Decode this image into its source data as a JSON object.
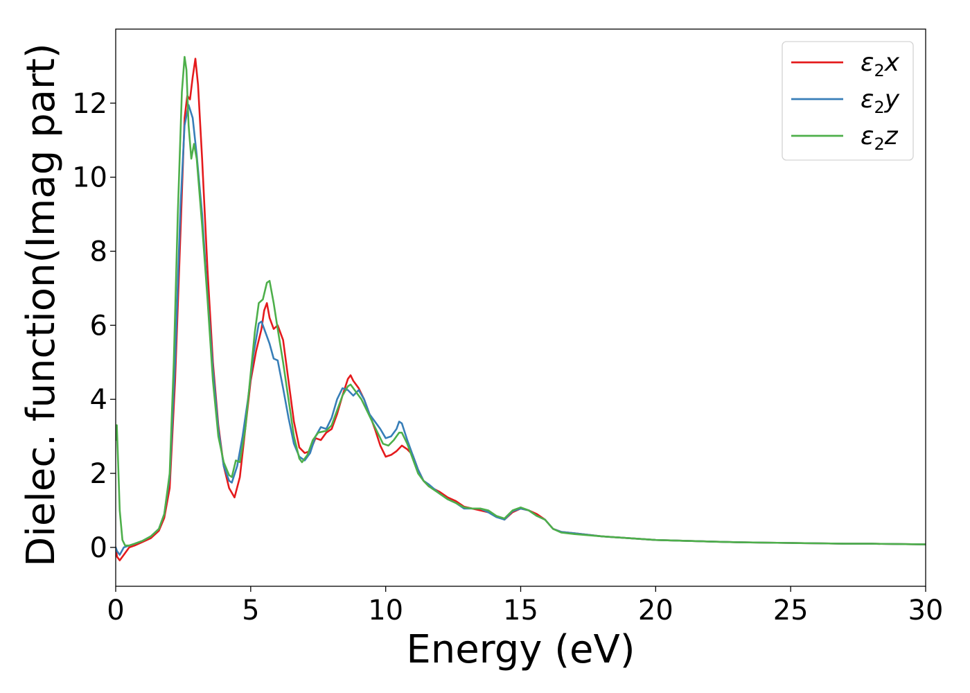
{
  "chart_data": {
    "type": "line",
    "xlabel": "Energy (eV)",
    "ylabel": "Dielec. function(Imag part)",
    "xlim": [
      0,
      30
    ],
    "ylim": [
      -1.05,
      14
    ],
    "xticks": [
      0,
      5,
      10,
      15,
      20,
      25,
      30
    ],
    "yticks": [
      0,
      2,
      4,
      6,
      8,
      10,
      12
    ],
    "grid": false,
    "legend_position": "top-right",
    "series": [
      {
        "name": "ε2x",
        "legend_base": "ε",
        "legend_sub": "2",
        "legend_tail": "x",
        "color": "#e41a1c",
        "points": [
          [
            0,
            0
          ],
          [
            0.05,
            -0.25
          ],
          [
            0.15,
            -0.35
          ],
          [
            0.3,
            -0.2
          ],
          [
            0.5,
            0
          ],
          [
            0.7,
            0.05
          ],
          [
            1,
            0.15
          ],
          [
            1.3,
            0.25
          ],
          [
            1.6,
            0.45
          ],
          [
            1.8,
            0.8
          ],
          [
            2,
            1.6
          ],
          [
            2.2,
            4.5
          ],
          [
            2.4,
            8.5
          ],
          [
            2.55,
            11.6
          ],
          [
            2.65,
            12.2
          ],
          [
            2.75,
            12.1
          ],
          [
            2.85,
            12.7
          ],
          [
            2.95,
            13.2
          ],
          [
            3.05,
            12.5
          ],
          [
            3.2,
            10.5
          ],
          [
            3.4,
            7.5
          ],
          [
            3.6,
            5
          ],
          [
            3.8,
            3.3
          ],
          [
            4,
            2.2
          ],
          [
            4.2,
            1.6
          ],
          [
            4.4,
            1.35
          ],
          [
            4.6,
            1.9
          ],
          [
            4.8,
            3.2
          ],
          [
            5,
            4.5
          ],
          [
            5.2,
            5.3
          ],
          [
            5.4,
            5.9
          ],
          [
            5.5,
            6.4
          ],
          [
            5.6,
            6.6
          ],
          [
            5.7,
            6.2
          ],
          [
            5.85,
            5.9
          ],
          [
            6,
            6
          ],
          [
            6.2,
            5.6
          ],
          [
            6.4,
            4.5
          ],
          [
            6.6,
            3.4
          ],
          [
            6.8,
            2.7
          ],
          [
            7,
            2.55
          ],
          [
            7.2,
            2.6
          ],
          [
            7.4,
            2.95
          ],
          [
            7.6,
            2.9
          ],
          [
            7.8,
            3.1
          ],
          [
            8,
            3.2
          ],
          [
            8.2,
            3.6
          ],
          [
            8.4,
            4.1
          ],
          [
            8.6,
            4.55
          ],
          [
            8.7,
            4.65
          ],
          [
            8.8,
            4.5
          ],
          [
            9,
            4.3
          ],
          [
            9.2,
            4
          ],
          [
            9.4,
            3.6
          ],
          [
            9.6,
            3.2
          ],
          [
            9.8,
            2.75
          ],
          [
            10,
            2.45
          ],
          [
            10.2,
            2.5
          ],
          [
            10.4,
            2.6
          ],
          [
            10.6,
            2.75
          ],
          [
            10.8,
            2.65
          ],
          [
            11,
            2.5
          ],
          [
            11.2,
            2.1
          ],
          [
            11.4,
            1.8
          ],
          [
            11.6,
            1.65
          ],
          [
            12,
            1.5
          ],
          [
            12.3,
            1.35
          ],
          [
            12.6,
            1.25
          ],
          [
            12.9,
            1.1
          ],
          [
            13.2,
            1.05
          ],
          [
            13.5,
            1
          ],
          [
            13.8,
            0.95
          ],
          [
            14.1,
            0.85
          ],
          [
            14.4,
            0.75
          ],
          [
            14.7,
            0.95
          ],
          [
            15,
            1.05
          ],
          [
            15.3,
            1
          ],
          [
            15.6,
            0.9
          ],
          [
            15.9,
            0.75
          ],
          [
            16.2,
            0.5
          ],
          [
            16.5,
            0.42
          ],
          [
            17,
            0.38
          ],
          [
            18,
            0.3
          ],
          [
            19,
            0.25
          ],
          [
            20,
            0.2
          ],
          [
            21,
            0.18
          ],
          [
            22,
            0.16
          ],
          [
            23,
            0.14
          ],
          [
            24,
            0.13
          ],
          [
            25,
            0.12
          ],
          [
            26,
            0.11
          ],
          [
            27,
            0.1
          ],
          [
            28,
            0.1
          ],
          [
            29,
            0.09
          ],
          [
            30,
            0.08
          ]
        ]
      },
      {
        "name": "ε2y",
        "legend_base": "ε",
        "legend_sub": "2",
        "legend_tail": "y",
        "color": "#377eb8",
        "points": [
          [
            0,
            0
          ],
          [
            0.05,
            -0.1
          ],
          [
            0.15,
            -0.2
          ],
          [
            0.3,
            0
          ],
          [
            0.5,
            0.05
          ],
          [
            0.7,
            0.1
          ],
          [
            1,
            0.18
          ],
          [
            1.3,
            0.3
          ],
          [
            1.6,
            0.5
          ],
          [
            1.8,
            0.9
          ],
          [
            2,
            1.9
          ],
          [
            2.2,
            5
          ],
          [
            2.4,
            9.2
          ],
          [
            2.55,
            11.4
          ],
          [
            2.7,
            11.95
          ],
          [
            2.85,
            11.6
          ],
          [
            3,
            10.6
          ],
          [
            3.2,
            9
          ],
          [
            3.4,
            6.8
          ],
          [
            3.6,
            4.8
          ],
          [
            3.8,
            3.2
          ],
          [
            4,
            2.2
          ],
          [
            4.2,
            1.8
          ],
          [
            4.3,
            1.75
          ],
          [
            4.5,
            2.2
          ],
          [
            4.7,
            3
          ],
          [
            4.9,
            4
          ],
          [
            5.1,
            5.2
          ],
          [
            5.3,
            6.05
          ],
          [
            5.4,
            6.1
          ],
          [
            5.55,
            5.8
          ],
          [
            5.7,
            5.5
          ],
          [
            5.85,
            5.1
          ],
          [
            6,
            5.05
          ],
          [
            6.2,
            4.3
          ],
          [
            6.4,
            3.5
          ],
          [
            6.6,
            2.8
          ],
          [
            6.8,
            2.45
          ],
          [
            7,
            2.35
          ],
          [
            7.2,
            2.55
          ],
          [
            7.4,
            3
          ],
          [
            7.6,
            3.25
          ],
          [
            7.8,
            3.2
          ],
          [
            8,
            3.5
          ],
          [
            8.2,
            4
          ],
          [
            8.4,
            4.3
          ],
          [
            8.6,
            4.25
          ],
          [
            8.8,
            4.1
          ],
          [
            9,
            4.25
          ],
          [
            9.2,
            4
          ],
          [
            9.4,
            3.6
          ],
          [
            9.6,
            3.4
          ],
          [
            9.8,
            3.2
          ],
          [
            10,
            2.95
          ],
          [
            10.2,
            3
          ],
          [
            10.4,
            3.2
          ],
          [
            10.5,
            3.4
          ],
          [
            10.6,
            3.35
          ],
          [
            10.8,
            2.9
          ],
          [
            11,
            2.5
          ],
          [
            11.2,
            2.1
          ],
          [
            11.4,
            1.8
          ],
          [
            11.6,
            1.7
          ],
          [
            12,
            1.45
          ],
          [
            12.3,
            1.3
          ],
          [
            12.6,
            1.2
          ],
          [
            12.9,
            1.05
          ],
          [
            13.2,
            1.05
          ],
          [
            13.5,
            1.05
          ],
          [
            13.8,
            0.95
          ],
          [
            14.1,
            0.82
          ],
          [
            14.4,
            0.75
          ],
          [
            14.7,
            0.98
          ],
          [
            15,
            1.05
          ],
          [
            15.3,
            1
          ],
          [
            15.6,
            0.85
          ],
          [
            15.9,
            0.75
          ],
          [
            16.2,
            0.5
          ],
          [
            16.5,
            0.42
          ],
          [
            17,
            0.38
          ],
          [
            18,
            0.3
          ],
          [
            19,
            0.25
          ],
          [
            20,
            0.2
          ],
          [
            21,
            0.18
          ],
          [
            22,
            0.16
          ],
          [
            23,
            0.14
          ],
          [
            24,
            0.13
          ],
          [
            25,
            0.12
          ],
          [
            26,
            0.11
          ],
          [
            27,
            0.1
          ],
          [
            28,
            0.1
          ],
          [
            29,
            0.09
          ],
          [
            30,
            0.08
          ]
        ]
      },
      {
        "name": "ε2z",
        "legend_base": "ε",
        "legend_sub": "2",
        "legend_tail": "z",
        "color": "#4daf4a",
        "points": [
          [
            0,
            2.9
          ],
          [
            0.04,
            3.3
          ],
          [
            0.08,
            2.5
          ],
          [
            0.15,
            1
          ],
          [
            0.25,
            0.2
          ],
          [
            0.35,
            0.05
          ],
          [
            0.5,
            0.05
          ],
          [
            0.7,
            0.1
          ],
          [
            1,
            0.18
          ],
          [
            1.3,
            0.3
          ],
          [
            1.6,
            0.5
          ],
          [
            1.8,
            0.9
          ],
          [
            2,
            2
          ],
          [
            2.15,
            5
          ],
          [
            2.3,
            9
          ],
          [
            2.45,
            12.3
          ],
          [
            2.55,
            13.25
          ],
          [
            2.62,
            12.9
          ],
          [
            2.7,
            11.4
          ],
          [
            2.8,
            10.5
          ],
          [
            2.9,
            10.9
          ],
          [
            3,
            10.5
          ],
          [
            3.2,
            8.7
          ],
          [
            3.4,
            6.7
          ],
          [
            3.6,
            4.5
          ],
          [
            3.8,
            3
          ],
          [
            4,
            2.3
          ],
          [
            4.2,
            1.95
          ],
          [
            4.3,
            1.9
          ],
          [
            4.45,
            2.35
          ],
          [
            4.6,
            2.3
          ],
          [
            4.8,
            3.2
          ],
          [
            5,
            4.7
          ],
          [
            5.15,
            5.8
          ],
          [
            5.3,
            6.6
          ],
          [
            5.45,
            6.7
          ],
          [
            5.6,
            7.15
          ],
          [
            5.7,
            7.2
          ],
          [
            5.85,
            6.6
          ],
          [
            6,
            5.9
          ],
          [
            6.2,
            5
          ],
          [
            6.4,
            4
          ],
          [
            6.6,
            3
          ],
          [
            6.8,
            2.4
          ],
          [
            6.9,
            2.3
          ],
          [
            7.1,
            2.5
          ],
          [
            7.3,
            2.9
          ],
          [
            7.5,
            3.1
          ],
          [
            7.8,
            3.15
          ],
          [
            8,
            3.3
          ],
          [
            8.2,
            3.7
          ],
          [
            8.4,
            4.1
          ],
          [
            8.6,
            4.35
          ],
          [
            8.7,
            4.4
          ],
          [
            8.9,
            4.2
          ],
          [
            9.1,
            4
          ],
          [
            9.3,
            3.7
          ],
          [
            9.5,
            3.4
          ],
          [
            9.7,
            3.1
          ],
          [
            9.9,
            2.8
          ],
          [
            10.1,
            2.75
          ],
          [
            10.3,
            2.9
          ],
          [
            10.5,
            3.1
          ],
          [
            10.6,
            3.1
          ],
          [
            10.8,
            2.8
          ],
          [
            11,
            2.4
          ],
          [
            11.2,
            2
          ],
          [
            11.4,
            1.8
          ],
          [
            11.6,
            1.65
          ],
          [
            12,
            1.45
          ],
          [
            12.3,
            1.3
          ],
          [
            12.6,
            1.2
          ],
          [
            12.9,
            1.08
          ],
          [
            13.2,
            1.05
          ],
          [
            13.5,
            1.05
          ],
          [
            13.8,
            1
          ],
          [
            14.1,
            0.85
          ],
          [
            14.4,
            0.78
          ],
          [
            14.7,
            1
          ],
          [
            15,
            1.08
          ],
          [
            15.3,
            1
          ],
          [
            15.6,
            0.85
          ],
          [
            15.9,
            0.75
          ],
          [
            16.2,
            0.5
          ],
          [
            16.5,
            0.4
          ],
          [
            17,
            0.36
          ],
          [
            18,
            0.3
          ],
          [
            19,
            0.25
          ],
          [
            20,
            0.2
          ],
          [
            21,
            0.18
          ],
          [
            22,
            0.16
          ],
          [
            23,
            0.14
          ],
          [
            24,
            0.13
          ],
          [
            25,
            0.12
          ],
          [
            26,
            0.11
          ],
          [
            27,
            0.1
          ],
          [
            28,
            0.1
          ],
          [
            29,
            0.09
          ],
          [
            30,
            0.08
          ]
        ]
      }
    ]
  }
}
